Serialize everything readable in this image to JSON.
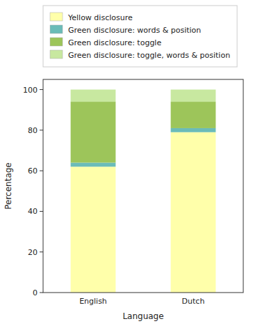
{
  "chart_data": {
    "type": "bar",
    "stacked": true,
    "categories": [
      "English",
      "Dutch"
    ],
    "series": [
      {
        "name": "Yellow disclosure",
        "color": "#ffffaa",
        "values": [
          62,
          79
        ]
      },
      {
        "name": "Green disclosure: words & position",
        "color": "#6bbcb8",
        "values": [
          2,
          2
        ]
      },
      {
        "name": "Green disclosure: toggle",
        "color": "#9dc55a",
        "values": [
          30,
          13
        ]
      },
      {
        "name": "Green disclosure: toggle, words & position",
        "color": "#c8e8a0",
        "values": [
          6,
          6
        ]
      }
    ],
    "xlabel": "Language",
    "ylabel": "Percentage",
    "ylim": [
      0,
      105
    ],
    "yticks": [
      0,
      20,
      40,
      60,
      80,
      100
    ],
    "legend": "upper left",
    "grid": false
  }
}
